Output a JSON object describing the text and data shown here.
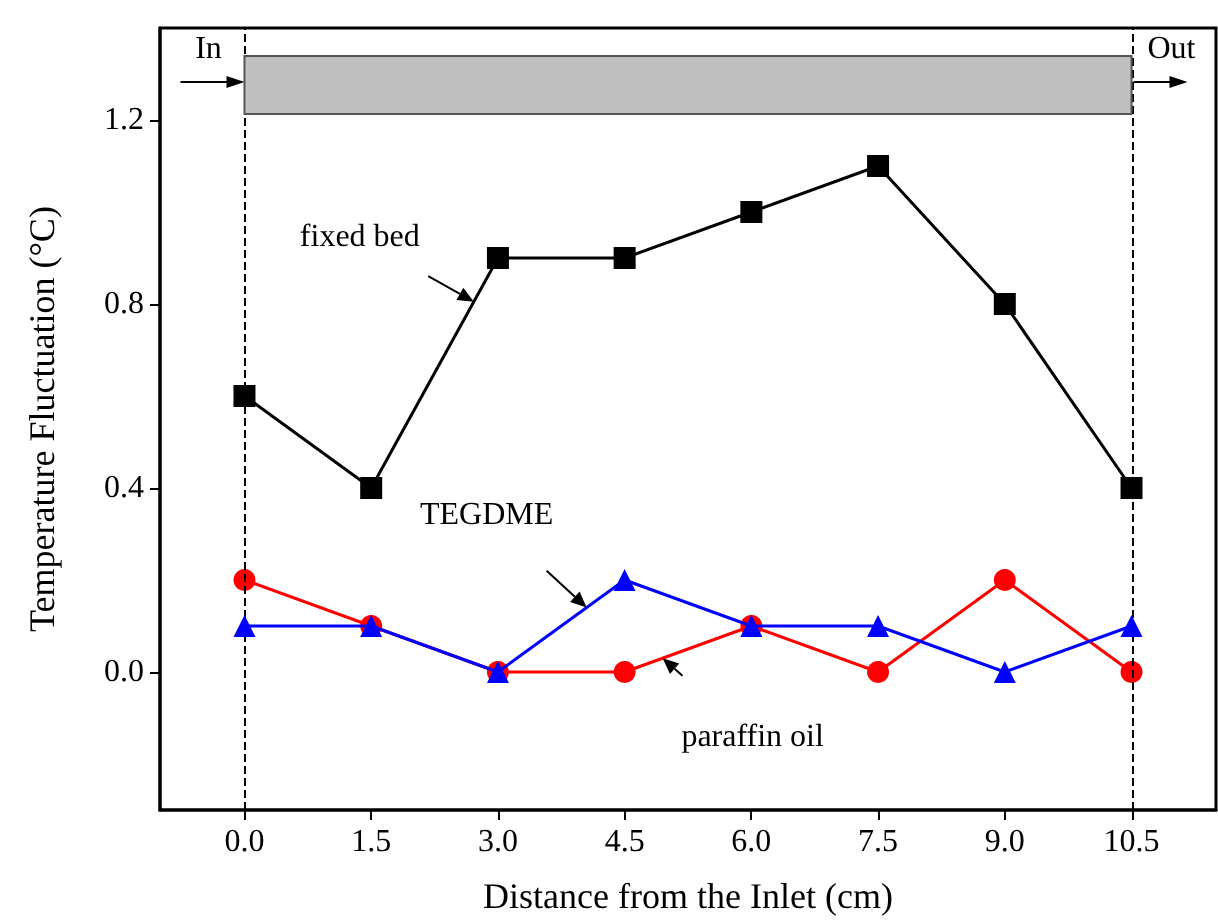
{
  "chart_data": {
    "type": "line",
    "xlabel": "Distance from the Inlet (cm)",
    "ylabel": "Temperature Fluctuation (°C)",
    "x": [
      0,
      1.5,
      3,
      4.5,
      6,
      7.5,
      9,
      10.5
    ],
    "xlim": [
      -1,
      11.5
    ],
    "xticks": [
      {
        "value": 0,
        "label": "0.0"
      },
      1.5,
      {
        "value": 3,
        "label": "3.0"
      },
      4.5,
      {
        "value": 6,
        "label": "6.0"
      },
      7.5,
      {
        "value": 9,
        "label": "9.0"
      },
      10.5
    ],
    "ylim": [
      -0.3,
      1.4
    ],
    "yticks": [
      {
        "value": 0,
        "label": "0.0"
      },
      0.4,
      0.8,
      1.2
    ],
    "grid": false,
    "legend": false,
    "series": [
      {
        "name": "fixed bed",
        "color": "#000000",
        "marker": "square",
        "values": [
          0.6,
          0.4,
          0.9,
          0.9,
          1.0,
          1.1,
          0.8,
          0.4
        ]
      },
      {
        "name": "TEGDME",
        "color": "#0000ff",
        "marker": "triangle",
        "values": [
          0.1,
          0.1,
          0,
          0.2,
          0.1,
          0.1,
          0,
          0.1
        ]
      },
      {
        "name": "paraffin oil",
        "color": "#ff0000",
        "marker": "circle",
        "values": [
          0.2,
          0.1,
          0,
          0,
          0.1,
          0,
          0.2,
          0
        ]
      }
    ],
    "ref_lines": [
      {
        "axis": "x",
        "value": 0,
        "color": "#000000",
        "line_style": "dashed"
      },
      {
        "axis": "x",
        "value": 10.5,
        "color": "#000000",
        "line_style": "dashed"
      }
    ],
    "annotations": [
      "In",
      "Out"
    ]
  }
}
